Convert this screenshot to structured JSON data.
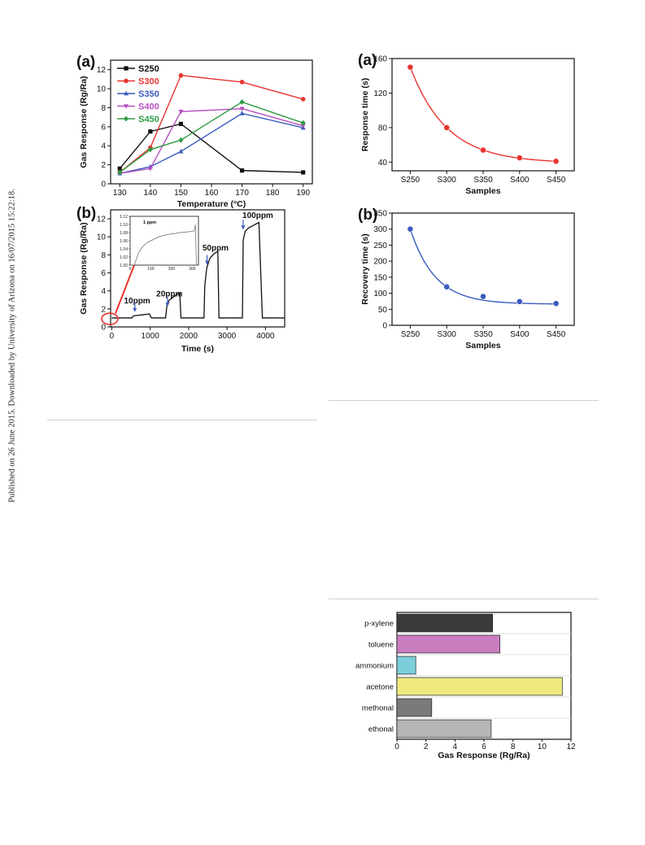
{
  "side_note": "Published on 26 June 2015. Downloaded by University of Arizona on 16/07/2015 15:22:18.",
  "chart_data": [
    {
      "id": "fig-a-temperature",
      "type": "line",
      "panel_label": "(a)",
      "xlabel": "Temperature (°C)",
      "ylabel": "Gas Response (Rg/Ra)",
      "xlim": [
        127,
        193
      ],
      "ylim": [
        0,
        13
      ],
      "xticks": [
        130,
        140,
        150,
        160,
        170,
        180,
        190
      ],
      "yticks": [
        0,
        2,
        4,
        6,
        8,
        10,
        12
      ],
      "x": [
        130,
        140,
        150,
        170,
        190
      ],
      "legend_position": "top-left",
      "series": [
        {
          "name": "S250",
          "color": "#111111",
          "marker": "square",
          "values": [
            1.6,
            5.5,
            6.3,
            1.4,
            1.2
          ]
        },
        {
          "name": "S300",
          "color": "#e8342f",
          "marker": "circle",
          "values": [
            1.2,
            3.8,
            11.4,
            10.7,
            8.9
          ]
        },
        {
          "name": "S350",
          "color": "#3b5bbf",
          "marker": "triangle-up",
          "values": [
            1.1,
            1.8,
            3.4,
            7.4,
            5.9
          ]
        },
        {
          "name": "S400",
          "color": "#b44fc0",
          "marker": "triangle-down",
          "values": [
            1.1,
            1.6,
            7.6,
            7.9,
            6.1
          ]
        },
        {
          "name": "S450",
          "color": "#2e9b45",
          "marker": "diamond",
          "values": [
            1.2,
            3.6,
            4.6,
            8.6,
            6.4
          ]
        }
      ]
    },
    {
      "id": "fig-b-dynamic",
      "type": "line",
      "panel_label": "(b)",
      "xlabel": "Time (s)",
      "ylabel": "Gas Response (Rg/Ra)",
      "xlim": [
        -30,
        4500
      ],
      "ylim": [
        0,
        13
      ],
      "xticks": [
        0,
        1000,
        2000,
        3000,
        4000
      ],
      "yticks": [
        0,
        2,
        4,
        6,
        8,
        10,
        12
      ],
      "annotations": [
        {
          "text": "10ppm",
          "x": 660,
          "y": 2.6,
          "arrow_x": 600,
          "arrow_y": 1.65
        },
        {
          "text": "20ppm",
          "x": 1500,
          "y": 3.4,
          "arrow_x": 1450,
          "arrow_y": 2.25
        },
        {
          "text": "50ppm",
          "x": 2700,
          "y": 8.5,
          "arrow_x": 2480,
          "arrow_y": 6.9
        },
        {
          "text": "100ppm",
          "x": 3800,
          "y": 12.1,
          "arrow_x": 3420,
          "arrow_y": 10.8
        }
      ],
      "series": [
        {
          "name": "",
          "color": "#111111",
          "x": [
            0,
            520,
            560,
            600,
            700,
            800,
            900,
            980,
            1030,
            1400,
            1440,
            1500,
            1600,
            1700,
            1770,
            1800,
            2400,
            2420,
            2470,
            2550,
            2650,
            2760,
            2790,
            3400,
            3420,
            3470,
            3560,
            3700,
            3830,
            3860,
            3920,
            4500
          ],
          "values": [
            1.0,
            1.0,
            1.2,
            1.25,
            1.3,
            1.35,
            1.4,
            1.45,
            1.0,
            1.0,
            2.5,
            3.0,
            3.3,
            3.6,
            3.8,
            1.0,
            1.0,
            4.5,
            6.5,
            7.6,
            8.1,
            8.4,
            1.0,
            1.0,
            9.6,
            10.6,
            11.0,
            11.3,
            11.6,
            8.0,
            1.0,
            1.0
          ]
        }
      ],
      "inset": {
        "label": "1 ppm",
        "xlim": [
          0,
          330
        ],
        "ylim": [
          1.0,
          1.12
        ],
        "xticks": [
          0,
          100,
          200,
          300
        ],
        "yticks": [
          1.0,
          1.02,
          1.04,
          1.06,
          1.08,
          1.1,
          1.12
        ],
        "ytick_labels": [
          "1.00",
          "1.02",
          "1.04",
          "1.06",
          "1.08",
          "1.10",
          "1.12"
        ],
        "x": [
          0,
          20,
          40,
          60,
          80,
          100,
          120,
          140,
          160,
          180,
          200,
          220,
          240,
          260,
          280,
          300,
          310,
          315,
          320
        ],
        "values": [
          1.0,
          1.0,
          1.03,
          1.045,
          1.055,
          1.06,
          1.065,
          1.07,
          1.073,
          1.075,
          1.077,
          1.078,
          1.08,
          1.081,
          1.082,
          1.083,
          1.085,
          1.1,
          1.0
        ]
      }
    },
    {
      "id": "fig-response-time",
      "type": "scatter",
      "panel_label": "(a)",
      "xlabel": "Samples",
      "ylabel": "Response time (s)",
      "categories": [
        "S250",
        "S300",
        "S350",
        "S400",
        "S450"
      ],
      "ylim": [
        30,
        160
      ],
      "yticks": [
        40,
        80,
        120,
        160
      ],
      "series": [
        {
          "name": "",
          "color": "#e8342f",
          "values": [
            150,
            80,
            54,
            45,
            41
          ]
        }
      ],
      "fit": "exponential"
    },
    {
      "id": "fig-recovery-time",
      "type": "scatter",
      "panel_label": "(b)",
      "xlabel": "Samples",
      "ylabel": "Recovery time (s)",
      "categories": [
        "S250",
        "S300",
        "S350",
        "S400",
        "S450"
      ],
      "ylim": [
        0,
        350
      ],
      "yticks": [
        0,
        50,
        100,
        150,
        200,
        250,
        300,
        350
      ],
      "series": [
        {
          "name": "",
          "color": "#3b5bbf",
          "values": [
            300,
            120,
            90,
            74,
            68
          ]
        }
      ],
      "fit": "exponential"
    },
    {
      "id": "fig-selectivity",
      "type": "bar",
      "orientation": "horizontal",
      "xlabel": "Gas Response (Rg/Ra)",
      "xlim": [
        0,
        12
      ],
      "xticks": [
        0,
        2,
        4,
        6,
        8,
        10,
        12
      ],
      "categories": [
        "p-xylene",
        "toluene",
        "ammonium",
        "acetone",
        "methonal",
        "ethonal"
      ],
      "values": [
        6.6,
        7.1,
        1.3,
        11.4,
        2.4,
        6.5
      ],
      "colors": [
        "#3a3a3a",
        "#c97ec0",
        "#7ccedb",
        "#eeea7e",
        "#7a7a7a",
        "#b6b6b6"
      ]
    }
  ]
}
